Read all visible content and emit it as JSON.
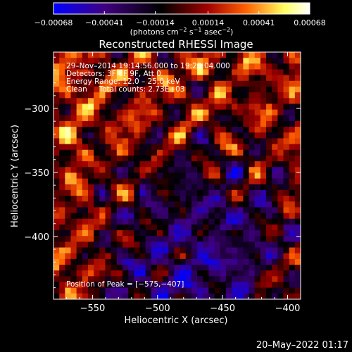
{
  "chart_data": {
    "type": "heatmap",
    "title": "Reconstructed RHESSI Image",
    "xlabel": "Heliocentric X (arcsec)",
    "ylabel": "Heliocentric Y (arcsec)",
    "xlim": [
      -580,
      -390
    ],
    "ylim": [
      -449,
      -256
    ],
    "x_ticks": [
      -550,
      -500,
      -450,
      -400
    ],
    "y_ticks": [
      -300,
      -350,
      -400
    ],
    "x_tick_labels": [
      "−550",
      "−500",
      "−450",
      "−400"
    ],
    "y_tick_labels": [
      "−300",
      "−350",
      "−400"
    ],
    "grid_size": [
      43,
      43
    ],
    "colorbar": {
      "min": -0.00068,
      "max": 0.00068,
      "ticks": [
        -0.00068,
        -0.00041,
        -0.00014,
        0.00014,
        0.00041,
        0.00068
      ],
      "tick_labels": [
        "−0.00068",
        "−0.00041",
        "−0.00014",
        "0.00014",
        "0.00041",
        "0.00068"
      ],
      "unit_base": "(photons cm",
      "unit_exp1": "−2",
      "unit_mid1": " s",
      "unit_exp2": "−1",
      "unit_mid2": " asec",
      "unit_exp3": "−2",
      "unit_end": ")",
      "colors": [
        "#0000ff",
        "#400080",
        "#000000",
        "#a00000",
        "#ff6000",
        "#ffff60",
        "#ffffff"
      ]
    },
    "info_lines": [
      "29–Nov–2014 19:14:56.000 to 19:20:04.000",
      "Detectors: 3F 8F 9F, Att 0",
      "Energy Range: 12.0 – 25.0 keV",
      "Clean     Total counts: 2.73E+03"
    ],
    "peak_label": "Position of Peak = [−575,−407]",
    "peak": [
      -575,
      -407
    ]
  },
  "footer": {
    "date": "20–May–2022 01:17"
  }
}
